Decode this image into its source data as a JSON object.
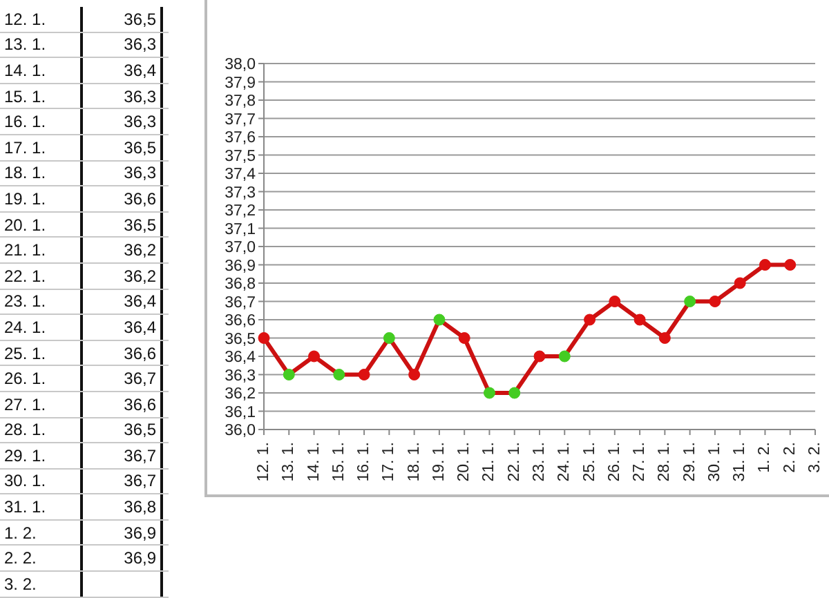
{
  "chart_data": [
    {
      "type": "other",
      "categories": [
        "12. 1.",
        "13. 1.",
        "14. 1.",
        "15. 1.",
        "16. 1.",
        "17. 1.",
        "18. 1.",
        "19. 1.",
        "20. 1.",
        "21. 1.",
        "22. 1.",
        "23. 1.",
        "24. 1.",
        "25. 1.",
        "26. 1.",
        "27. 1.",
        "28. 1.",
        "29. 1.",
        "30. 1.",
        "31. 1.",
        "1. 2.",
        "2. 2.",
        "3. 2."
      ],
      "values": [
        36.5,
        36.3,
        36.4,
        36.3,
        36.3,
        36.5,
        36.3,
        36.6,
        36.5,
        36.2,
        36.2,
        36.4,
        36.4,
        36.6,
        36.7,
        36.6,
        36.5,
        36.7,
        36.7,
        36.8,
        36.9,
        36.9,
        null
      ],
      "value_labels": [
        "36,5",
        "36,3",
        "36,4",
        "36,3",
        "36,3",
        "36,5",
        "36,3",
        "36,6",
        "36,5",
        "36,2",
        "36,2",
        "36,4",
        "36,4",
        "36,6",
        "36,7",
        "36,6",
        "36,5",
        "36,7",
        "36,7",
        "36,8",
        "36,9",
        "36,9",
        null
      ]
    },
    {
      "type": "line",
      "categories": [
        "12. 1.",
        "13. 1.",
        "14. 1.",
        "15. 1.",
        "16. 1.",
        "17. 1.",
        "18. 1.",
        "19. 1.",
        "20. 1.",
        "21. 1.",
        "22. 1.",
        "23. 1.",
        "24. 1.",
        "25. 1.",
        "26. 1.",
        "27. 1.",
        "28. 1.",
        "29. 1.",
        "30. 1.",
        "31. 1.",
        "1. 2.",
        "2. 2.",
        "3. 2."
      ],
      "values": [
        36.5,
        36.3,
        36.4,
        36.3,
        36.3,
        36.5,
        36.3,
        36.6,
        36.5,
        36.2,
        36.2,
        36.4,
        36.4,
        36.6,
        36.7,
        36.6,
        36.5,
        36.7,
        36.7,
        36.8,
        36.9,
        36.9,
        null
      ],
      "color": "#cc1111",
      "colors": [
        "#dd1111",
        "#44cc22",
        "#dd1111",
        "#44cc22",
        "#dd1111",
        "#44cc22",
        "#dd1111",
        "#44cc22",
        "#dd1111",
        "#44cc22",
        "#44cc22",
        "#dd1111",
        "#44cc22",
        "#dd1111",
        "#dd1111",
        "#dd1111",
        "#dd1111",
        "#44cc22",
        "#dd1111",
        "#dd1111",
        "#dd1111",
        "#dd1111",
        null
      ],
      "marker": "circle",
      "line_style": "solid",
      "ylim": [
        36,
        38
      ],
      "yticks": [
        {
          "value": 36,
          "label": "36,0"
        },
        {
          "value": 36.1,
          "label": "36,1"
        },
        {
          "value": 36.2,
          "label": "36,2"
        },
        {
          "value": 36.3,
          "label": "36,3"
        },
        {
          "value": 36.4,
          "label": "36,4"
        },
        {
          "value": 36.5,
          "label": "36,5"
        },
        {
          "value": 36.6,
          "label": "36,6"
        },
        {
          "value": 36.7,
          "label": "36,7"
        },
        {
          "value": 36.8,
          "label": "36,8"
        },
        {
          "value": 36.9,
          "label": "36,9"
        },
        {
          "value": 37,
          "label": "37,0"
        },
        {
          "value": 37.1,
          "label": "37,1"
        },
        {
          "value": 37.2,
          "label": "37,2"
        },
        {
          "value": 37.3,
          "label": "37,3"
        },
        {
          "value": 37.4,
          "label": "37,4"
        },
        {
          "value": 37.5,
          "label": "37,5"
        },
        {
          "value": 37.6,
          "label": "37,6"
        },
        {
          "value": 37.7,
          "label": "37,7"
        },
        {
          "value": 37.8,
          "label": "37,8"
        },
        {
          "value": 37.9,
          "label": "37,9"
        },
        {
          "value": 38,
          "label": "38,0"
        }
      ],
      "grid": "y"
    }
  ]
}
